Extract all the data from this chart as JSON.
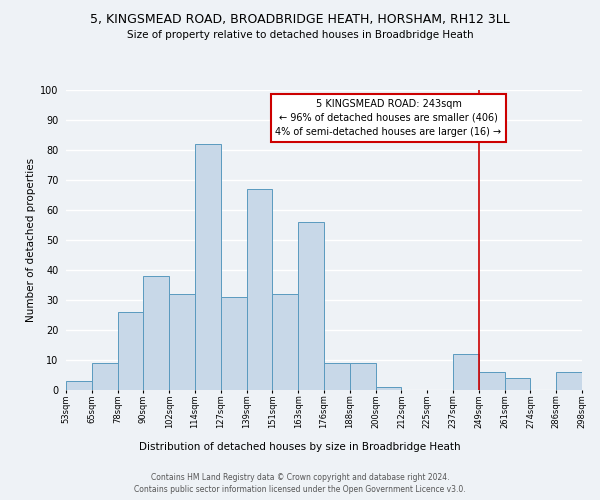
{
  "title1": "5, KINGSMEAD ROAD, BROADBRIDGE HEATH, HORSHAM, RH12 3LL",
  "title2": "Size of property relative to detached houses in Broadbridge Heath",
  "xlabel": "Distribution of detached houses by size in Broadbridge Heath",
  "ylabel": "Number of detached properties",
  "categories": [
    "53sqm",
    "65sqm",
    "78sqm",
    "90sqm",
    "102sqm",
    "114sqm",
    "127sqm",
    "139sqm",
    "151sqm",
    "163sqm",
    "176sqm",
    "188sqm",
    "200sqm",
    "212sqm",
    "225sqm",
    "237sqm",
    "249sqm",
    "261sqm",
    "274sqm",
    "286sqm",
    "298sqm"
  ],
  "values": [
    3,
    9,
    26,
    38,
    32,
    82,
    31,
    67,
    32,
    56,
    9,
    9,
    1,
    0,
    0,
    12,
    6,
    4,
    0,
    6
  ],
  "bar_color": "#c8d8e8",
  "bar_edge_color": "#5a9abf",
  "annotation_text": "5 KINGSMEAD ROAD: 243sqm\n← 96% of detached houses are smaller (406)\n4% of semi-detached houses are larger (16) →",
  "annotation_box_color": "#ffffff",
  "annotation_box_edge_color": "#cc0000",
  "line_color": "#cc0000",
  "ylim": [
    0,
    100
  ],
  "yticks": [
    0,
    10,
    20,
    30,
    40,
    50,
    60,
    70,
    80,
    90,
    100
  ],
  "footer1": "Contains HM Land Registry data © Crown copyright and database right 2024.",
  "footer2": "Contains public sector information licensed under the Open Government Licence v3.0.",
  "bg_color": "#eef2f6",
  "title1_fontsize": 9,
  "title2_fontsize": 7.5,
  "annotation_fontsize": 7,
  "ylabel_fontsize": 7.5,
  "xlabel_fontsize": 7.5,
  "ytick_fontsize": 7,
  "xtick_fontsize": 6,
  "footer_fontsize": 5.5
}
